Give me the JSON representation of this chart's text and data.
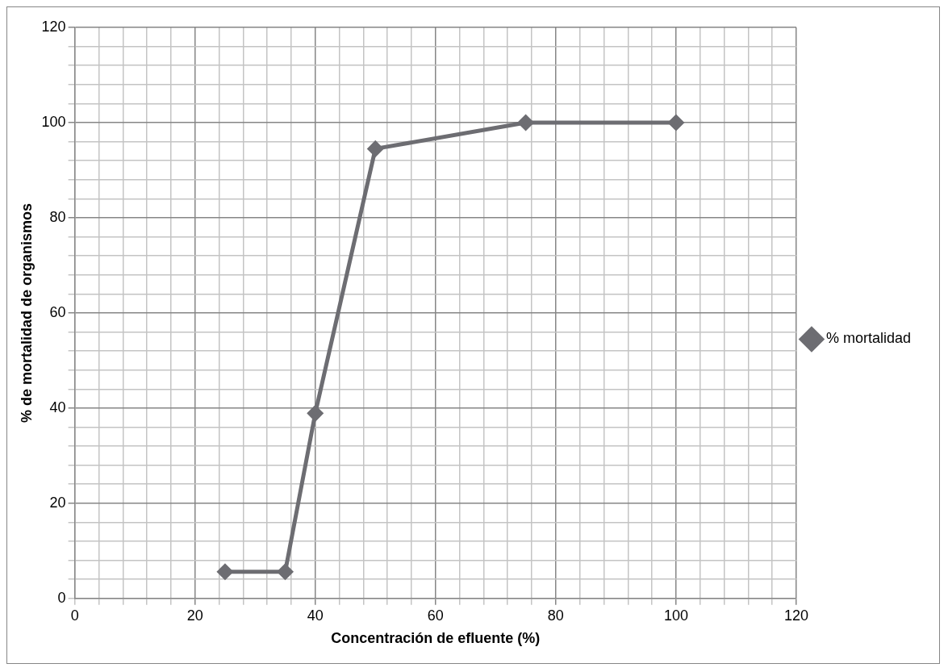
{
  "chart_data": {
    "type": "line",
    "xlabel": "Concentración de efluente (%)",
    "ylabel": "% de mortalidad de organismos",
    "series": [
      {
        "name": "% mortalidad",
        "color": "#6d6d72",
        "x": [
          25,
          35,
          40,
          50,
          75,
          100
        ],
        "values": [
          5.6,
          5.6,
          38.9,
          94.5,
          100,
          100
        ]
      }
    ],
    "xlim": [
      0,
      120
    ],
    "ylim": [
      0,
      120
    ],
    "xticks": [
      0,
      {
        "value": 4,
        "label": null
      },
      {
        "value": 8,
        "label": null
      },
      {
        "value": 12,
        "label": null
      },
      {
        "value": 16,
        "label": null
      },
      20,
      {
        "value": 24,
        "label": null
      },
      {
        "value": 28,
        "label": null
      },
      {
        "value": 32,
        "label": null
      },
      {
        "value": 36,
        "label": null
      },
      40,
      {
        "value": 44,
        "label": null
      },
      {
        "value": 48,
        "label": null
      },
      {
        "value": 52,
        "label": null
      },
      {
        "value": 56,
        "label": null
      },
      60,
      {
        "value": 64,
        "label": null
      },
      {
        "value": 68,
        "label": null
      },
      {
        "value": 72,
        "label": null
      },
      {
        "value": 76,
        "label": null
      },
      80,
      {
        "value": 84,
        "label": null
      },
      {
        "value": 88,
        "label": null
      },
      {
        "value": 92,
        "label": null
      },
      {
        "value": 96,
        "label": null
      },
      100,
      {
        "value": 104,
        "label": null
      },
      {
        "value": 108,
        "label": null
      },
      {
        "value": 112,
        "label": null
      },
      {
        "value": 116,
        "label": null
      },
      120
    ],
    "yticks": [
      0,
      {
        "value": 4,
        "label": null
      },
      {
        "value": 8,
        "label": null
      },
      {
        "value": 12,
        "label": null
      },
      {
        "value": 16,
        "label": null
      },
      20,
      {
        "value": 24,
        "label": null
      },
      {
        "value": 28,
        "label": null
      },
      {
        "value": 32,
        "label": null
      },
      {
        "value": 36,
        "label": null
      },
      40,
      {
        "value": 44,
        "label": null
      },
      {
        "value": 48,
        "label": null
      },
      {
        "value": 52,
        "label": null
      },
      {
        "value": 56,
        "label": null
      },
      60,
      {
        "value": 64,
        "label": null
      },
      {
        "value": 68,
        "label": null
      },
      {
        "value": 72,
        "label": null
      },
      {
        "value": 76,
        "label": null
      },
      80,
      {
        "value": 84,
        "label": null
      },
      {
        "value": 88,
        "label": null
      },
      {
        "value": 92,
        "label": null
      },
      {
        "value": 96,
        "label": null
      },
      100,
      {
        "value": 104,
        "label": null
      },
      {
        "value": 108,
        "label": null
      },
      {
        "value": 112,
        "label": null
      },
      {
        "value": 116,
        "label": null
      },
      120
    ],
    "grid": true,
    "legend": "right",
    "marker": "diamond",
    "line_style": "solid"
  }
}
